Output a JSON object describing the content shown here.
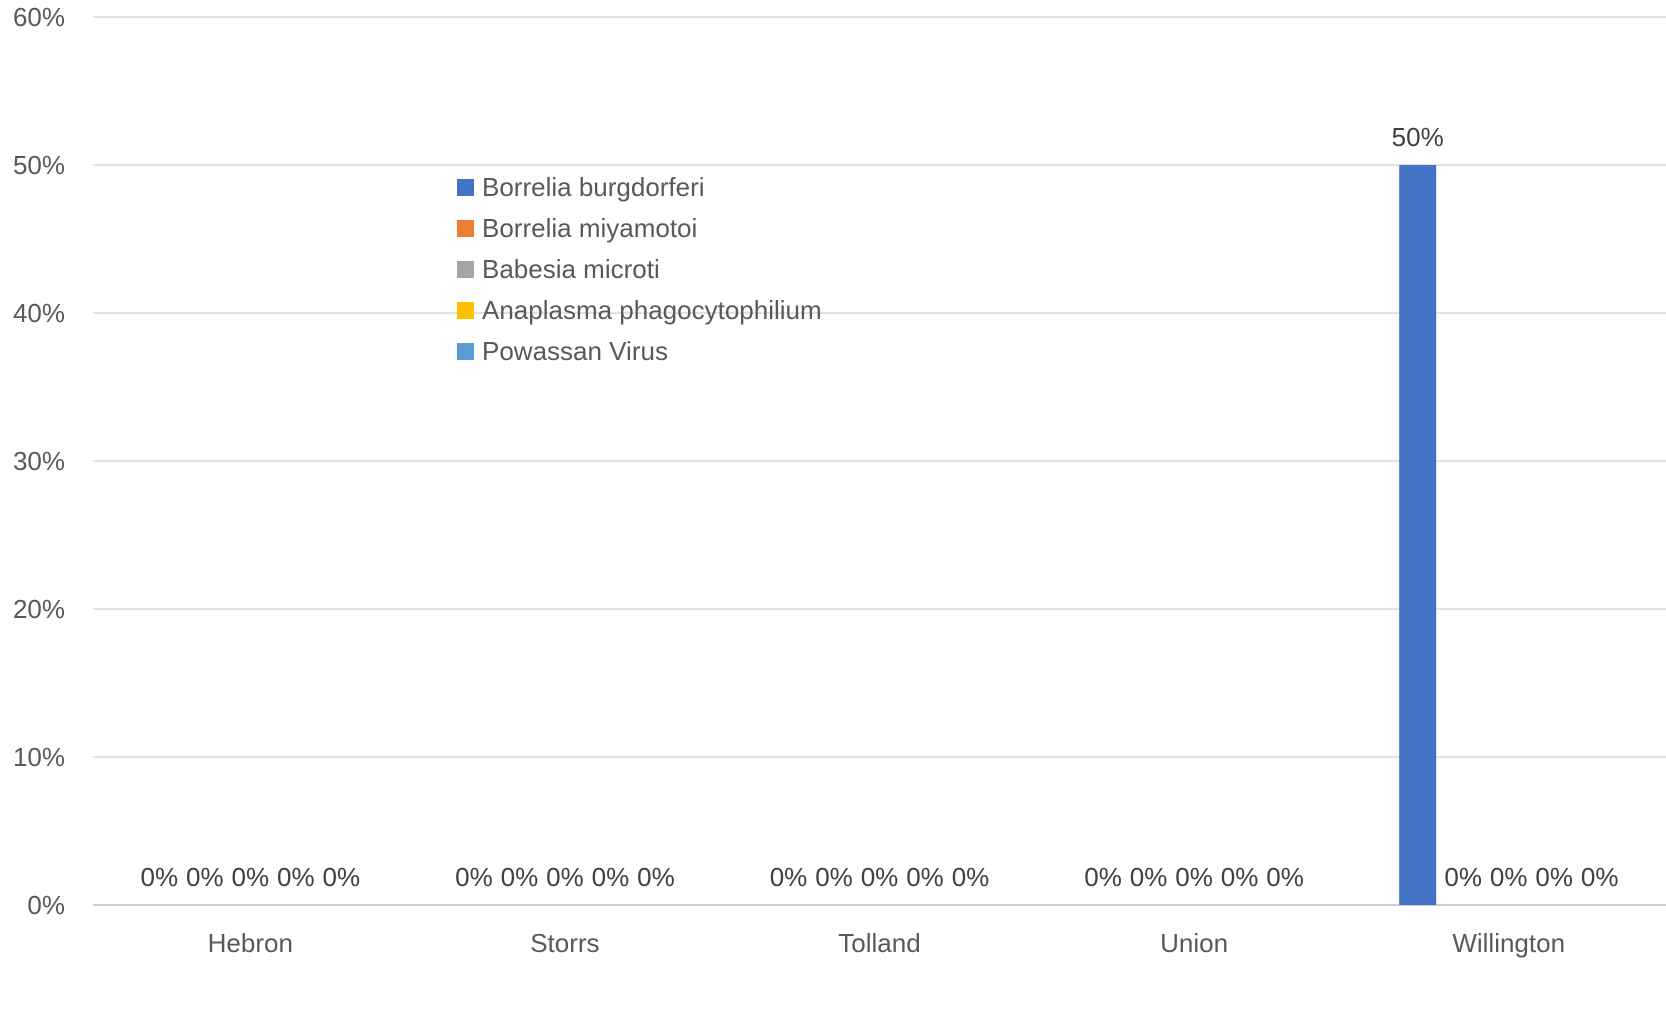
{
  "chart_data": {
    "type": "bar",
    "title": "",
    "xlabel": "",
    "ylabel": "",
    "ylim": [
      0,
      0.6
    ],
    "y_ticks": [
      0,
      0.1,
      0.2,
      0.3,
      0.4,
      0.5,
      0.6
    ],
    "y_tick_labels": [
      "0%",
      "10%",
      "20%",
      "30%",
      "40%",
      "50%",
      "60%"
    ],
    "grid": true,
    "legend_position": "top-center",
    "categories": [
      "Hebron",
      "Storrs",
      "Tolland",
      "Union",
      "Willington"
    ],
    "series": [
      {
        "name": "Borrelia burgdorferi",
        "color": "#4472c4",
        "values": [
          0,
          0,
          0,
          0,
          0.5
        ],
        "labels": [
          "0%",
          "0%",
          "0%",
          "0%",
          "50%"
        ]
      },
      {
        "name": "Borrelia miyamotoi",
        "color": "#ed7d31",
        "values": [
          0,
          0,
          0,
          0,
          0
        ],
        "labels": [
          "0%",
          "0%",
          "0%",
          "0%",
          "0%"
        ]
      },
      {
        "name": "Babesia microti",
        "color": "#a5a5a5",
        "values": [
          0,
          0,
          0,
          0,
          0
        ],
        "labels": [
          "0%",
          "0%",
          "0%",
          "0%",
          "0%"
        ]
      },
      {
        "name": "Anaplasma phagocytophilium",
        "color": "#ffc000",
        "values": [
          0,
          0,
          0,
          0,
          0
        ],
        "labels": [
          "0%",
          "0%",
          "0%",
          "0%",
          "0%"
        ]
      },
      {
        "name": "Powassan Virus",
        "color": "#5b9bd5",
        "values": [
          0,
          0,
          0,
          0,
          0
        ],
        "labels": [
          "0%",
          "0%",
          "0%",
          "0%",
          "0%"
        ]
      }
    ]
  }
}
